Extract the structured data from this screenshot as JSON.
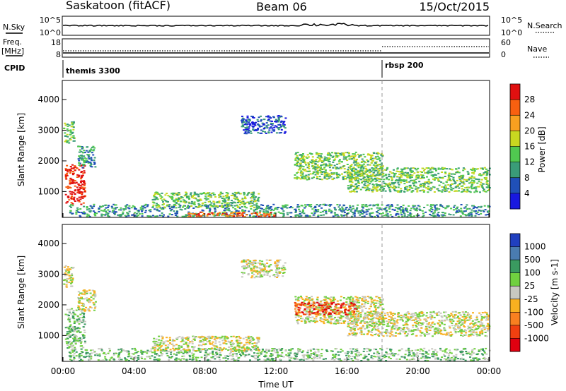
{
  "header": {
    "station": "Saskatoon (fitACF)",
    "beam": "Beam 06",
    "date": "15/Oct/2015"
  },
  "noise_panel": {
    "left_label": "N.Sky",
    "right_label": "N.Search",
    "left_ticks": [
      "10^5",
      "10^0"
    ],
    "right_ticks": [
      "10^5",
      "10^0"
    ]
  },
  "freq_panel": {
    "left_label_1": "Freq.",
    "left_label_2": "[MHz]",
    "right_label": "Nave",
    "left_ticks": [
      "18",
      "8"
    ],
    "right_ticks": [
      "60",
      "0"
    ]
  },
  "cpid": {
    "label": "CPID",
    "segments": [
      {
        "name": "themis 3300",
        "start_hour": 0
      },
      {
        "name": "rbsp 200",
        "start_hour": 18
      }
    ]
  },
  "x_axis": {
    "label": "Time UT",
    "ticks": [
      "00:00",
      "04:00",
      "08:00",
      "12:00",
      "16:00",
      "20:00",
      "00:00"
    ]
  },
  "chart_data": [
    {
      "type": "heatmap",
      "name": "power",
      "ylabel": "Slant Range [km]",
      "yticks": [
        1000,
        2000,
        3000,
        4000
      ],
      "ylim": [
        180,
        4600
      ],
      "xlim_hours": [
        0,
        24
      ],
      "colorbar": {
        "label": "Power [dB]",
        "ticks": [
          "28",
          "24",
          "20",
          "16",
          "12",
          "8",
          "4"
        ],
        "colors": [
          "#e01010",
          "#f86010",
          "#f8a020",
          "#c8d820",
          "#50c850",
          "#3a9c78",
          "#2050b8",
          "#1818e0"
        ]
      },
      "regions": [
        {
          "x": [
            0.1,
            1.2
          ],
          "y": [
            600,
            1900
          ],
          "level": 0
        },
        {
          "x": [
            0.0,
            0.6
          ],
          "y": [
            2600,
            3300
          ],
          "level": 4
        },
        {
          "x": [
            0.8,
            1.8
          ],
          "y": [
            1800,
            2500
          ],
          "level": 5
        },
        {
          "x": [
            0.3,
            24.0
          ],
          "y": [
            200,
            600
          ],
          "level": 5
        },
        {
          "x": [
            5.0,
            11.0
          ],
          "y": [
            500,
            1000
          ],
          "level": 4
        },
        {
          "x": [
            10.0,
            12.5
          ],
          "y": [
            2900,
            3500
          ],
          "level": 6
        },
        {
          "x": [
            13.0,
            18.0
          ],
          "y": [
            1400,
            2300
          ],
          "level": 4
        },
        {
          "x": [
            16.0,
            24.0
          ],
          "y": [
            1000,
            1800
          ],
          "level": 4
        },
        {
          "x": [
            7.0,
            12.0
          ],
          "y": [
            200,
            350
          ],
          "level": 1
        }
      ]
    },
    {
      "type": "heatmap",
      "name": "velocity",
      "ylabel": "Slant Range [km]",
      "yticks": [
        1000,
        2000,
        3000,
        4000
      ],
      "ylim": [
        180,
        4600
      ],
      "xlim_hours": [
        0,
        24
      ],
      "colorbar": {
        "label": "Velocity [m s-1]",
        "ticks": [
          "1000",
          "500",
          "100",
          "25",
          "-25",
          "-100",
          "-500",
          "-1000"
        ],
        "colors": [
          "#2040c0",
          "#4a7cb0",
          "#3a9a60",
          "#70d040",
          "#c8c8c0",
          "#f8b020",
          "#f88020",
          "#f04010",
          "#e00010"
        ]
      },
      "regions": [
        {
          "x": [
            0.1,
            1.2
          ],
          "y": [
            600,
            1900
          ],
          "level": 3
        },
        {
          "x": [
            0.0,
            0.6
          ],
          "y": [
            2600,
            3300
          ],
          "level": 4
        },
        {
          "x": [
            0.8,
            1.8
          ],
          "y": [
            1800,
            2500
          ],
          "level": 4
        },
        {
          "x": [
            0.3,
            24.0
          ],
          "y": [
            200,
            600
          ],
          "level": 3
        },
        {
          "x": [
            5.0,
            11.0
          ],
          "y": [
            500,
            1000
          ],
          "level": 4
        },
        {
          "x": [
            10.0,
            12.5
          ],
          "y": [
            2900,
            3500
          ],
          "level": 4
        },
        {
          "x": [
            13.0,
            18.0
          ],
          "y": [
            1400,
            2300
          ],
          "level": 4
        },
        {
          "x": [
            13.0,
            16.5
          ],
          "y": [
            1700,
            2100
          ],
          "level": 7
        },
        {
          "x": [
            16.0,
            24.0
          ],
          "y": [
            1000,
            1800
          ],
          "level": 4
        }
      ]
    }
  ]
}
